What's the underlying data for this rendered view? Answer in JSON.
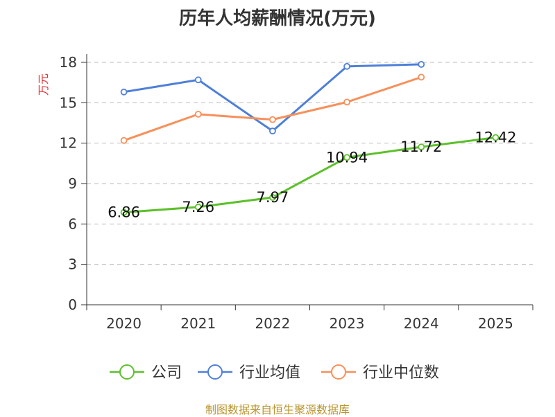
{
  "footer": {
    "source": "制图数据来自恒生聚源数据库"
  },
  "chart_data": {
    "type": "line",
    "title": "历年人均薪酬情况(万元)",
    "ylabel": "万元",
    "xlabel": "",
    "categories": [
      "2020",
      "2021",
      "2022",
      "2023",
      "2024",
      "2025"
    ],
    "ylim": [
      0,
      18
    ],
    "yticks": [
      0,
      3,
      6,
      9,
      12,
      15,
      18
    ],
    "grid": true,
    "legend_position": "bottom",
    "series": [
      {
        "name": "公司",
        "color": "#5cc02a",
        "values": [
          6.86,
          7.26,
          7.97,
          10.94,
          11.72,
          12.42
        ],
        "labels": [
          "6.86",
          "7.26",
          "7.97",
          "10.94",
          "11.72",
          "12.42"
        ]
      },
      {
        "name": "行业均值",
        "color": "#4e7fd9",
        "values": [
          15.8,
          16.7,
          12.9,
          17.7,
          17.85,
          null
        ]
      },
      {
        "name": "行业中位数",
        "color": "#f7905a",
        "values": [
          12.2,
          14.15,
          13.75,
          15.05,
          16.9,
          null
        ]
      }
    ]
  }
}
